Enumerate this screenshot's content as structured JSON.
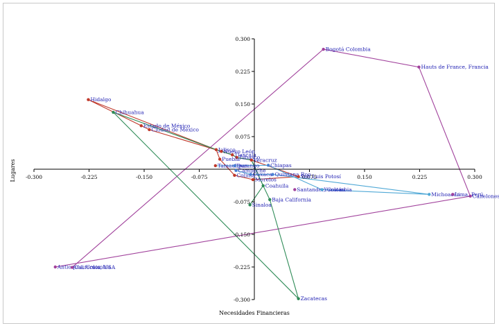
{
  "chart_data": {
    "type": "scatter",
    "xlabel": "Necesidades Financieras",
    "ylabel": "Lugares",
    "xlim": [
      -0.3,
      0.3
    ],
    "ylim": [
      -0.3,
      0.3
    ],
    "xticks": [
      -0.3,
      -0.225,
      -0.15,
      -0.075,
      0.075,
      0.15,
      0.225,
      0.3
    ],
    "yticks": [
      -0.3,
      -0.225,
      -0.15,
      -0.075,
      0.075,
      0.15,
      0.225,
      0.3
    ],
    "xtick_labels": [
      "-0.300",
      "-0.225",
      "-0.150",
      "-0.075",
      "0.075",
      "0.150",
      "0.225",
      "0.300"
    ],
    "ytick_labels": [
      "-0.300",
      "-0.225",
      "-0.150",
      "-0.075",
      "0.075",
      "0.150",
      "0.225",
      "0.300"
    ],
    "grid": false,
    "points": [
      {
        "label": "Bogotá Colombia",
        "x": 0.094,
        "y": 0.276,
        "color": "#a1429c"
      },
      {
        "label": "Hauts de France, Francia",
        "x": 0.224,
        "y": 0.235,
        "color": "#a1429c"
      },
      {
        "label": "Hidalgo",
        "x": -0.226,
        "y": 0.16,
        "color": "#c0392b"
      },
      {
        "label": "Chihuahua",
        "x": -0.192,
        "y": 0.131,
        "color": "#2e8b57"
      },
      {
        "label": "Estado de México",
        "x": -0.154,
        "y": 0.1,
        "color": "#c0392b"
      },
      {
        "label": "Ciudad de México",
        "x": -0.143,
        "y": 0.091,
        "color": "#c0392b"
      },
      {
        "label": "Jalisco",
        "x": -0.052,
        "y": 0.045,
        "color": "#c0392b"
      },
      {
        "label": "Nuevo León",
        "x": -0.045,
        "y": 0.041,
        "color": "#c0392b"
      },
      {
        "label": "Tlaxcala",
        "x": -0.03,
        "y": 0.033,
        "color": "#c0392b"
      },
      {
        "label": "Tabasco",
        "x": -0.024,
        "y": 0.027,
        "color": "#c0392b"
      },
      {
        "label": "Veracruz",
        "x": -0.004,
        "y": 0.021,
        "color": "#c0392b"
      },
      {
        "label": "Puebla",
        "x": -0.047,
        "y": 0.023,
        "color": "#c0392b"
      },
      {
        "label": "Tamaulipas",
        "x": -0.053,
        "y": 0.008,
        "color": "#c0392b"
      },
      {
        "label": "Durango",
        "x": -0.027,
        "y": 0.008,
        "color": "#4a7fd4"
      },
      {
        "label": "Chiapas",
        "x": 0.019,
        "y": 0.009,
        "color": "#4a7fd4"
      },
      {
        "label": "Campeche",
        "x": -0.025,
        "y": -0.003,
        "color": "#4a7fd4"
      },
      {
        "label": "Colima",
        "x": -0.027,
        "y": -0.014,
        "color": "#c0392b"
      },
      {
        "label": "Oaxaca",
        "x": -0.005,
        "y": -0.012,
        "color": "#4a7fd4"
      },
      {
        "label": "Quintana Roo",
        "x": 0.025,
        "y": -0.012,
        "color": "#4a7fd4"
      },
      {
        "label": "Morelos",
        "x": -0.002,
        "y": -0.024,
        "color": "#c0392b"
      },
      {
        "label": "San Luis Potosí",
        "x": 0.06,
        "y": -0.017,
        "color": "#c0392b"
      },
      {
        "label": "Coahuila",
        "x": 0.012,
        "y": -0.038,
        "color": "#2e8b57"
      },
      {
        "label": "Santander, Colombia",
        "x": 0.055,
        "y": -0.047,
        "color": "#a1429c"
      },
      {
        "label": "Yucatán",
        "x": 0.092,
        "y": -0.047,
        "color": "#4fa8d6"
      },
      {
        "label": "Michoacán",
        "x": 0.238,
        "y": -0.058,
        "color": "#4fa8d6"
      },
      {
        "label": "Lima, Perú",
        "x": 0.27,
        "y": -0.058,
        "color": "#a1429c"
      },
      {
        "label": "Canelones,",
        "x": 0.294,
        "y": -0.062,
        "color": "#a1429c"
      },
      {
        "label": "Baja California",
        "x": 0.021,
        "y": -0.07,
        "color": "#2e8b57"
      },
      {
        "label": "Sinaloa",
        "x": -0.006,
        "y": -0.082,
        "color": "#2e8b57"
      },
      {
        "label": "Antioquia, Colombia",
        "x": -0.271,
        "y": -0.225,
        "color": "#a1429c"
      },
      {
        "label": "California, USA",
        "x": -0.248,
        "y": -0.226,
        "color": "#a1429c"
      },
      {
        "label": "Zacatecas",
        "x": 0.06,
        "y": -0.298,
        "color": "#2e8b57"
      }
    ],
    "paths": [
      {
        "color": "#a1429c",
        "points": [
          [
            -0.248,
            -0.226
          ],
          [
            0.094,
            0.276
          ],
          [
            0.224,
            0.235
          ],
          [
            0.294,
            -0.062
          ],
          [
            -0.271,
            -0.225
          ]
        ]
      },
      {
        "color": "#c0392b",
        "points": [
          [
            -0.226,
            0.16
          ],
          [
            -0.154,
            0.1
          ],
          [
            -0.143,
            0.091
          ],
          [
            -0.045,
            0.041
          ],
          [
            -0.03,
            0.033
          ],
          [
            -0.024,
            0.027
          ],
          [
            -0.004,
            0.021
          ],
          [
            0.06,
            -0.017
          ],
          [
            -0.002,
            -0.024
          ],
          [
            -0.027,
            -0.014
          ],
          [
            -0.047,
            0.023
          ],
          [
            -0.052,
            0.045
          ],
          [
            -0.226,
            0.16
          ]
        ]
      },
      {
        "color": "#2e8b57",
        "points": [
          [
            -0.192,
            0.131
          ],
          [
            -0.052,
            0.045
          ],
          [
            -0.03,
            0.033
          ],
          [
            -0.024,
            0.027
          ],
          [
            -0.004,
            0.021
          ],
          [
            0.012,
            -0.038
          ],
          [
            0.021,
            -0.07
          ],
          [
            0.06,
            -0.298
          ],
          [
            -0.192,
            0.131
          ]
        ]
      },
      {
        "color": "#2e8b57",
        "points": [
          [
            -0.006,
            -0.082
          ],
          [
            0.012,
            -0.038
          ],
          [
            -0.004,
            0.021
          ]
        ]
      },
      {
        "color": "#4fa8d6",
        "points": [
          [
            -0.053,
            0.008
          ],
          [
            -0.027,
            0.008
          ],
          [
            0.019,
            0.009
          ],
          [
            0.092,
            -0.047
          ],
          [
            0.238,
            -0.058
          ],
          [
            0.025,
            -0.012
          ],
          [
            -0.005,
            -0.012
          ],
          [
            -0.025,
            -0.003
          ]
        ]
      }
    ]
  }
}
